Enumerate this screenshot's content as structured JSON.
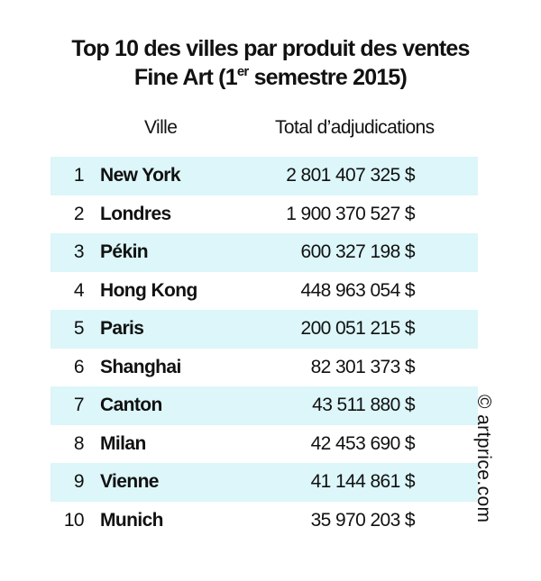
{
  "chart_data": {
    "type": "table",
    "title_line1": "Top 10 des villes par produit des ventes",
    "title_line2_prefix": "Fine Art (1",
    "title_line2_sup": "er",
    "title_line2_suffix": " semestre 2015)",
    "columns": [
      "Ville",
      "Total d’adjudications"
    ],
    "rows": [
      {
        "rank": "1",
        "city": "New York",
        "total": "2 801 407 325 $",
        "value": 2801407325
      },
      {
        "rank": "2",
        "city": "Londres",
        "total": "1 900 370 527 $",
        "value": 1900370527
      },
      {
        "rank": "3",
        "city": "Pékin",
        "total": "600 327 198 $",
        "value": 600327198
      },
      {
        "rank": "4",
        "city": "Hong Kong",
        "total": "448 963 054 $",
        "value": 448963054
      },
      {
        "rank": "5",
        "city": "Paris",
        "total": "200 051 215 $",
        "value": 200051215
      },
      {
        "rank": "6",
        "city": "Shanghai",
        "total": "82 301 373 $",
        "value": 82301373
      },
      {
        "rank": "7",
        "city": "Canton",
        "total": "43 511 880 $",
        "value": 43511880
      },
      {
        "rank": "8",
        "city": "Milan",
        "total": "42 453 690 $",
        "value": 42453690
      },
      {
        "rank": "9",
        "city": "Vienne",
        "total": "41 144 861 $",
        "value": 41144861
      },
      {
        "rank": "10",
        "city": "Munich",
        "total": "35 970 203 $",
        "value": 35970203
      }
    ],
    "shaded_row_color": "#dcf6f9",
    "copyright": "© artprice.com"
  }
}
